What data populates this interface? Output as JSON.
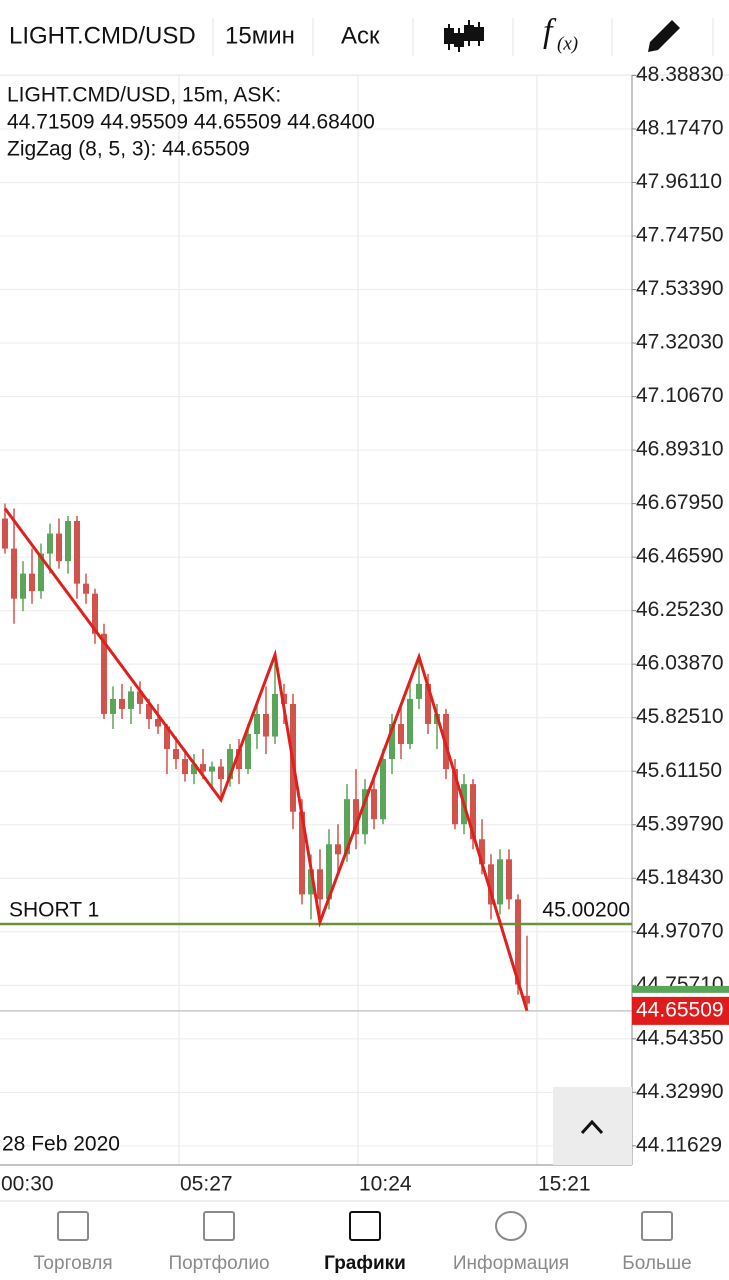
{
  "toolbar": {
    "symbol": "LIGHT.CMD/USD",
    "timeframe": "15мин",
    "price_side": "Аск",
    "function_icon": [
      "f",
      "(x)"
    ]
  },
  "legend": [
    "LIGHT.CMD/USD, 15m, ASK:",
    "44.71509 44.95509 44.65509 44.68400",
    "ZigZag (8, 5, 3): 44.65509"
  ],
  "chart_data": {
    "type": "candlestick",
    "date_label": "28 Feb 2020",
    "xtick_labels": [
      "00:30",
      "05:27",
      "10:24",
      "15:21"
    ],
    "ylim": [
      44.04,
      48.39
    ],
    "yticks": [
      {
        "value": 48.3883,
        "label": "48.38830"
      },
      {
        "value": 48.1747,
        "label": "48.17470"
      },
      {
        "value": 47.9611,
        "label": "47.96110"
      },
      {
        "value": 47.7475,
        "label": "47.74750"
      },
      {
        "value": 47.5339,
        "label": "47.53390"
      },
      {
        "value": 47.3203,
        "label": "47.32030"
      },
      {
        "value": 47.1067,
        "label": "47.10670"
      },
      {
        "value": 46.8931,
        "label": "46.89310"
      },
      {
        "value": 46.6795,
        "label": "46.67950"
      },
      {
        "value": 46.4659,
        "label": "46.46590"
      },
      {
        "value": 46.2523,
        "label": "46.25230"
      },
      {
        "value": 46.0387,
        "label": "46.03870"
      },
      {
        "value": 45.8251,
        "label": "45.82510"
      },
      {
        "value": 45.6115,
        "label": "45.61150"
      },
      {
        "value": 45.3979,
        "label": "45.39790"
      },
      {
        "value": 45.1843,
        "label": "45.18430"
      },
      {
        "value": 44.9707,
        "label": "44.97070"
      },
      {
        "value": 44.7571,
        "label": "44.75710"
      },
      {
        "value": 44.5435,
        "label": "44.54350"
      },
      {
        "value": 44.3299,
        "label": "44.32990"
      },
      44.11629
    ],
    "grid": true,
    "up_color": "#5aa55a",
    "down_color": "#d2524c",
    "open": [
      46.62,
      46.5,
      46.3,
      46.4,
      46.33,
      46.48,
      46.56,
      46.45,
      46.61,
      46.36,
      46.32,
      46.16,
      45.84,
      45.9,
      45.86,
      45.93,
      45.88,
      45.82,
      45.79,
      45.7,
      45.66,
      45.6,
      45.64,
      45.61,
      45.63,
      45.58,
      45.7,
      45.62,
      45.76,
      45.84,
      45.75,
      45.92,
      45.88,
      45.45,
      45.12,
      45.22,
      45.1,
      45.32,
      45.28,
      45.5,
      45.36,
      45.54,
      45.42,
      45.66,
      45.8,
      45.72,
      45.9,
      45.96,
      45.8,
      45.84,
      45.62,
      45.4,
      45.56,
      45.34,
      45.24,
      45.08,
      45.26,
      45.1,
      44.71509
    ],
    "high": [
      46.68,
      46.66,
      46.45,
      46.5,
      46.52,
      46.6,
      46.62,
      46.63,
      46.63,
      46.4,
      46.34,
      46.2,
      45.95,
      45.96,
      45.95,
      45.97,
      45.9,
      45.88,
      45.8,
      45.75,
      45.7,
      45.68,
      45.7,
      45.65,
      45.66,
      45.72,
      45.74,
      45.8,
      45.88,
      45.95,
      46.05,
      45.96,
      45.92,
      45.5,
      45.28,
      45.3,
      45.38,
      45.4,
      45.56,
      45.62,
      45.58,
      45.6,
      45.7,
      45.84,
      45.88,
      45.96,
      46.06,
      46.0,
      45.88,
      45.86,
      45.66,
      45.6,
      45.58,
      45.42,
      45.28,
      45.3,
      45.3,
      45.12,
      44.95509
    ],
    "low": [
      46.48,
      46.2,
      46.25,
      46.28,
      46.3,
      46.4,
      46.42,
      46.4,
      46.3,
      46.28,
      46.12,
      45.82,
      45.78,
      45.82,
      45.8,
      45.84,
      45.78,
      45.76,
      45.6,
      45.62,
      45.57,
      45.56,
      45.58,
      45.55,
      45.5,
      45.55,
      45.56,
      45.6,
      45.7,
      45.68,
      45.72,
      45.8,
      45.38,
      45.08,
      45.02,
      45.02,
      45.06,
      45.2,
      45.25,
      45.3,
      45.32,
      45.38,
      45.4,
      45.6,
      45.66,
      45.7,
      45.86,
      45.76,
      45.7,
      45.58,
      45.38,
      45.36,
      45.3,
      45.2,
      45.02,
      45.04,
      45.06,
      44.72,
      44.65509
    ],
    "close": [
      46.5,
      46.3,
      46.4,
      46.33,
      46.48,
      46.56,
      46.45,
      46.61,
      46.36,
      46.32,
      46.16,
      45.84,
      45.9,
      45.86,
      45.93,
      45.88,
      45.82,
      45.79,
      45.7,
      45.66,
      45.6,
      45.64,
      45.61,
      45.63,
      45.58,
      45.7,
      45.62,
      45.76,
      45.84,
      45.75,
      45.92,
      45.88,
      45.45,
      45.12,
      45.22,
      45.1,
      45.32,
      45.28,
      45.5,
      45.36,
      45.54,
      45.42,
      45.66,
      45.8,
      45.72,
      45.9,
      45.96,
      45.8,
      45.84,
      45.62,
      45.4,
      45.56,
      45.34,
      45.24,
      45.08,
      45.26,
      45.1,
      44.76,
      44.684
    ],
    "zigzag": {
      "color": "#e0201c",
      "x": [
        0,
        24,
        30,
        35,
        46,
        58
      ],
      "values": [
        46.66,
        45.497,
        46.076,
        45.01,
        46.068,
        44.65509
      ]
    },
    "level": {
      "name": "SHORT 1",
      "value": 45.002,
      "value_label": "45.00200",
      "color": "#6b9139"
    },
    "current_price": {
      "value": 44.65509,
      "color": "#e01b1b"
    }
  },
  "nav": [
    {
      "label": "Торговля"
    },
    {
      "label": "Портфолио"
    },
    {
      "label": "Графики",
      "active": true
    },
    {
      "label": "Информация"
    },
    {
      "label": "Больше"
    }
  ]
}
